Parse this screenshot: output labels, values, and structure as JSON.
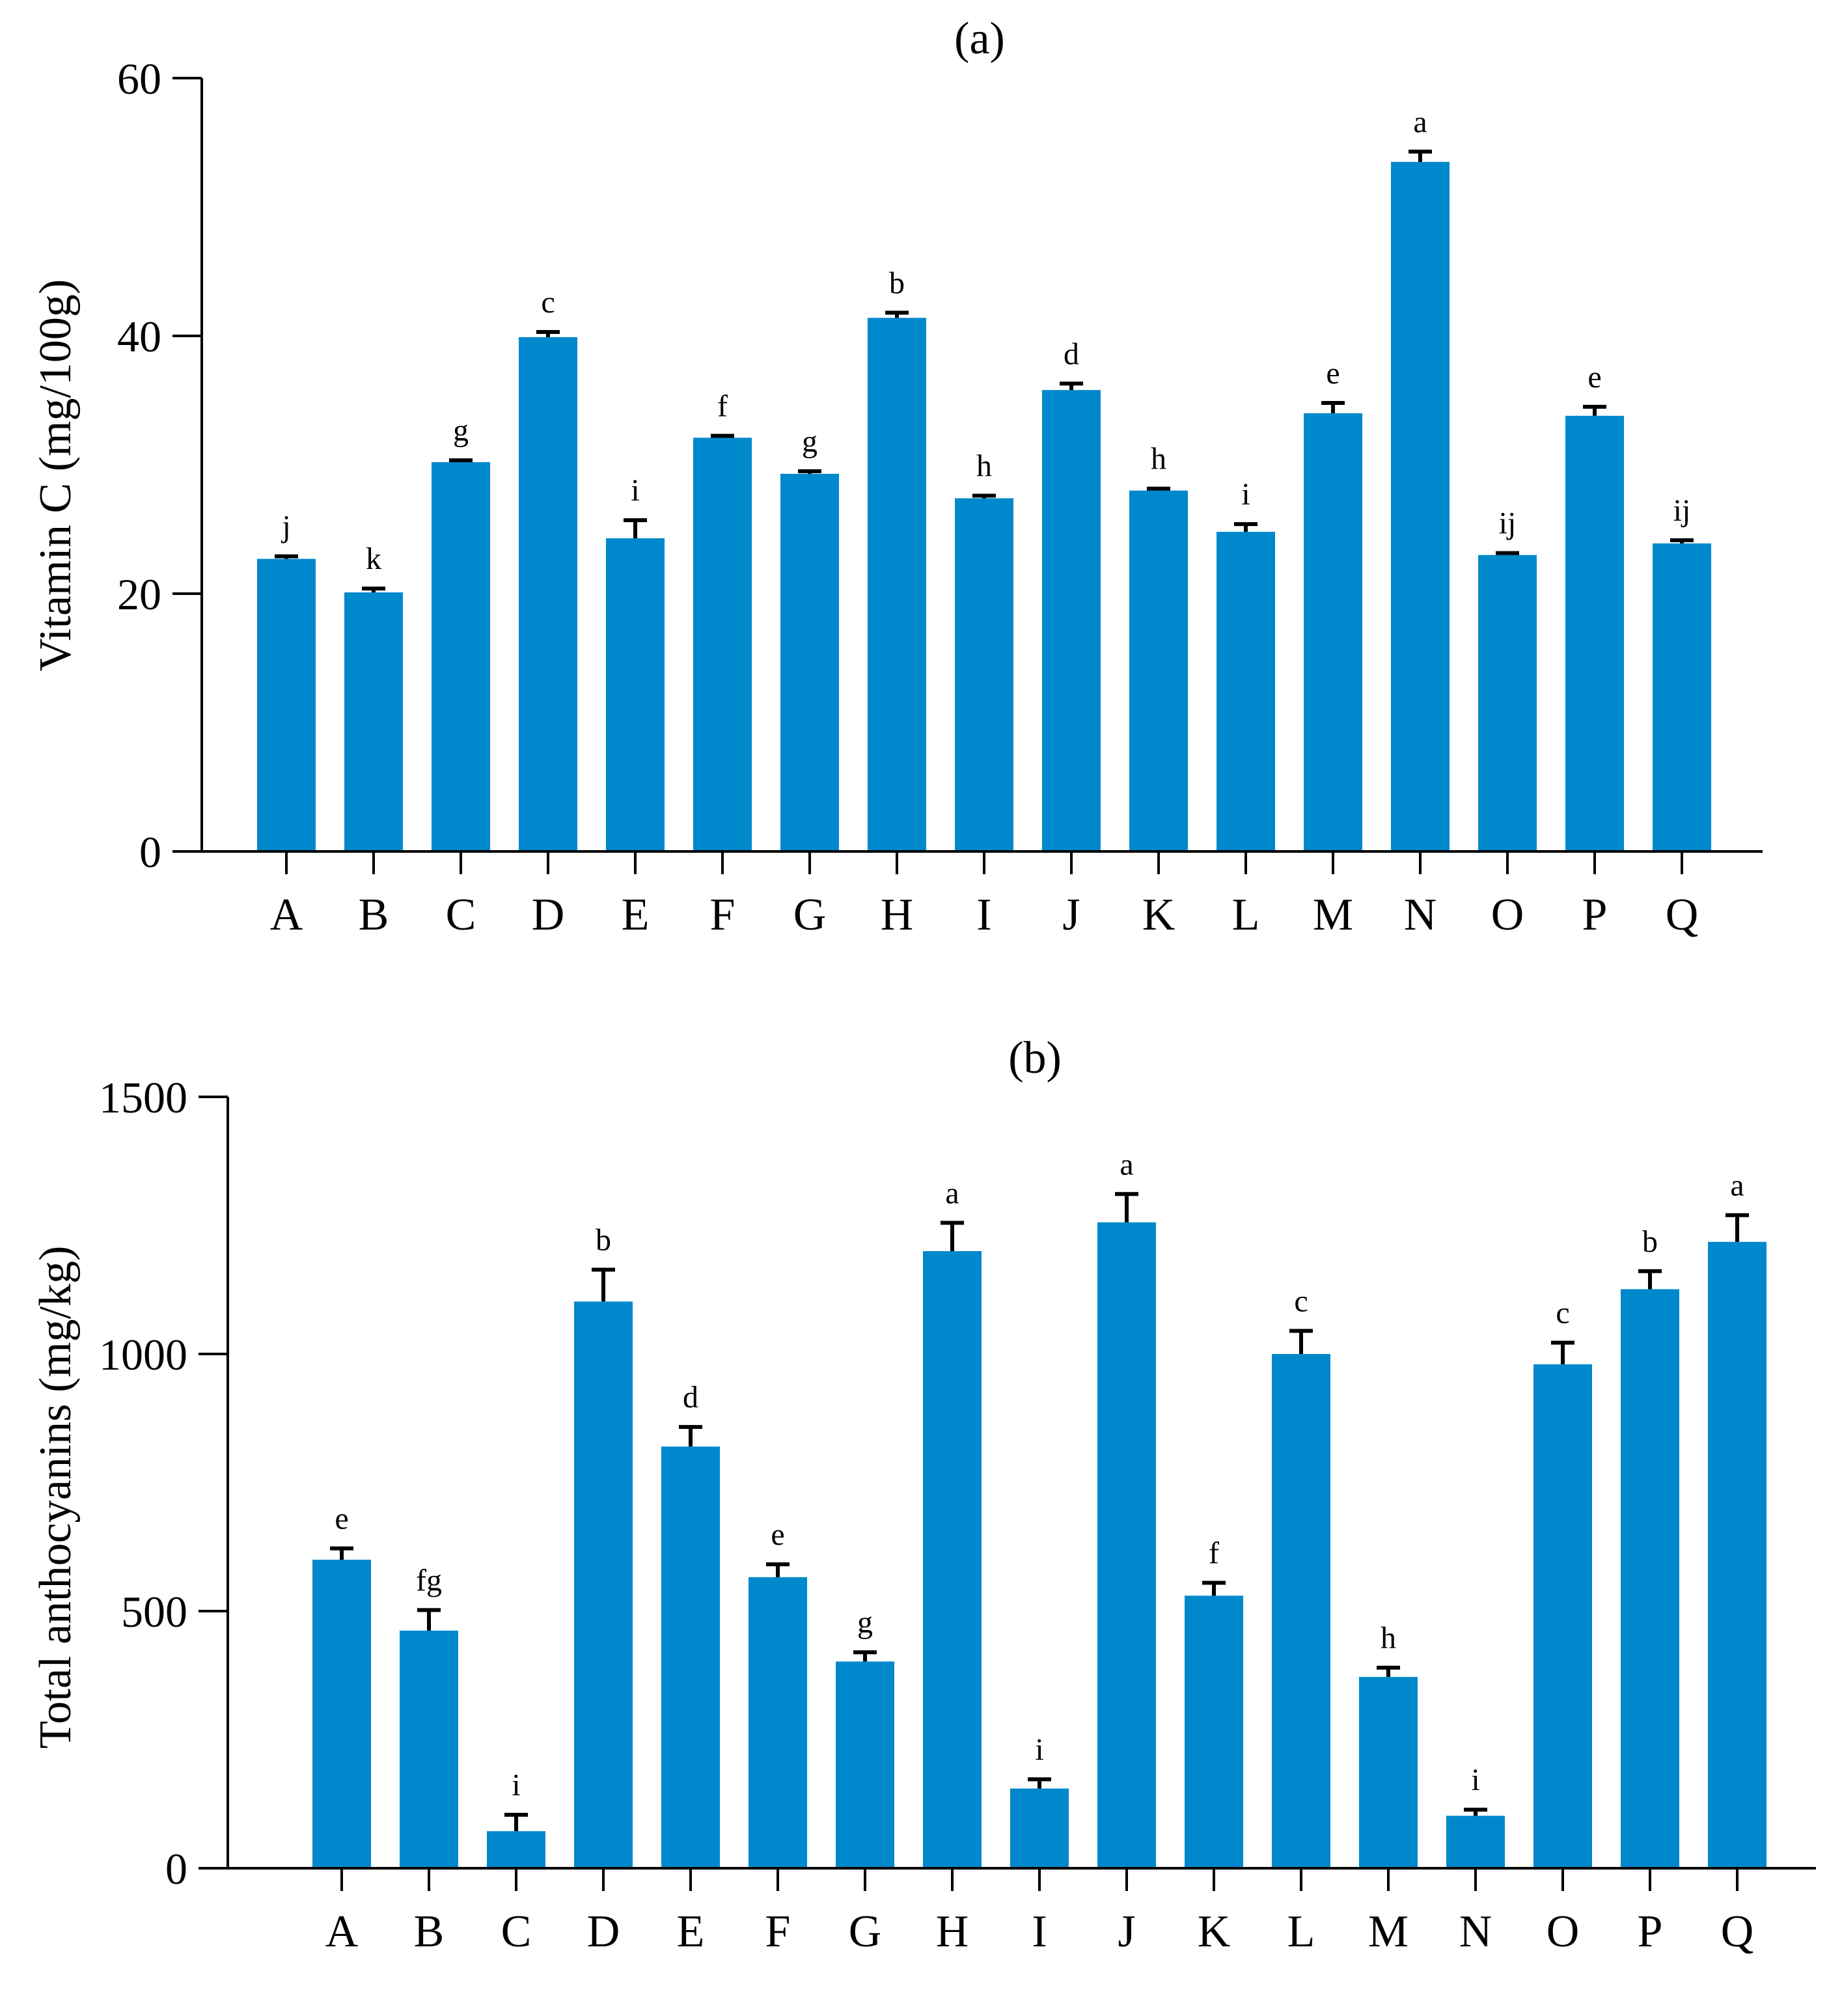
{
  "colors": {
    "bar": "#0088cc",
    "axis": "#000000"
  },
  "chart_data": [
    {
      "type": "bar",
      "title": "(a)",
      "xlabel": "",
      "ylabel": "Vitamin C (mg/100g)",
      "ylim": [
        0,
        60
      ],
      "yticks": [
        0,
        20,
        40,
        60
      ],
      "categories": [
        "A",
        "B",
        "C",
        "D",
        "E",
        "F",
        "G",
        "H",
        "I",
        "J",
        "K",
        "L",
        "M",
        "N",
        "O",
        "P",
        "Q"
      ],
      "values": [
        22.7,
        20.1,
        30.2,
        39.9,
        24.3,
        32.1,
        29.3,
        41.4,
        27.4,
        35.8,
        28.0,
        24.8,
        34.0,
        53.5,
        23.0,
        33.8,
        23.9
      ],
      "errors": [
        0.2,
        0.3,
        0.15,
        0.4,
        1.4,
        0.15,
        0.2,
        0.4,
        0.2,
        0.5,
        0.15,
        0.6,
        0.8,
        0.8,
        0.15,
        0.7,
        0.25
      ],
      "significance": [
        "j",
        "k",
        "g",
        "c",
        "i",
        "f",
        "g",
        "b",
        "h",
        "d",
        "h",
        "i",
        "e",
        "a",
        "ij",
        "e",
        "ij"
      ]
    },
    {
      "type": "bar",
      "title": "(b)",
      "xlabel": "",
      "ylabel": "Total anthocyanins (mg/kg)",
      "ylim": [
        0,
        1500
      ],
      "yticks": [
        0,
        500,
        1000,
        1500
      ],
      "categories": [
        "A",
        "B",
        "C",
        "D",
        "E",
        "F",
        "G",
        "H",
        "I",
        "J",
        "K",
        "L",
        "M",
        "N",
        "O",
        "P",
        "Q"
      ],
      "values": [
        600,
        462,
        72,
        1102,
        820,
        566,
        402,
        1200,
        155,
        1256,
        530,
        1000,
        372,
        102,
        980,
        1126,
        1218
      ],
      "errors": [
        22,
        40,
        32,
        62,
        38,
        25,
        18,
        55,
        18,
        55,
        25,
        45,
        18,
        12,
        42,
        35,
        52
      ],
      "significance": [
        "e",
        "fg",
        "i",
        "b",
        "d",
        "e",
        "g",
        "a",
        "i",
        "a",
        "f",
        "c",
        "h",
        "i",
        "c",
        "b",
        "a"
      ]
    }
  ]
}
